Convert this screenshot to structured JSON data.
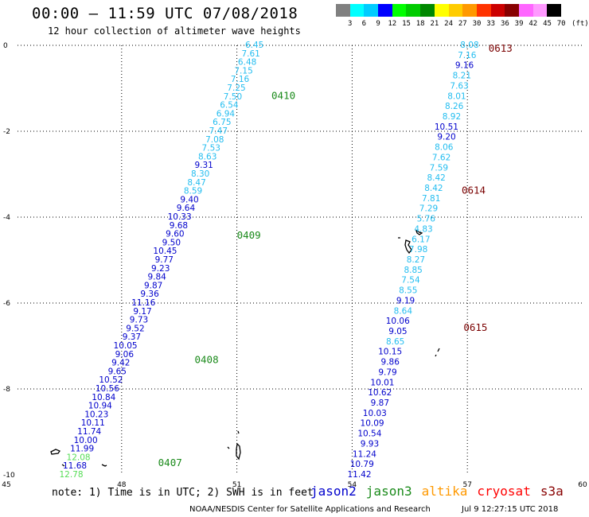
{
  "title": "00:00 – 11:59 UTC 07/08/2018",
  "subtitle": "12 hour collection of altimeter wave heights",
  "legend": {
    "unit": "(ft)",
    "colors": [
      "#808080",
      "#00ffff",
      "#00ccff",
      "#0000ff",
      "#00ff00",
      "#00cc00",
      "#008800",
      "#ffff00",
      "#ffcc00",
      "#ff9900",
      "#ff3300",
      "#cc0000",
      "#880000",
      "#ff66ff",
      "#ff99ff",
      "#000000"
    ],
    "labels": [
      "3",
      "6",
      "9",
      "12",
      "15",
      "18",
      "21",
      "24",
      "27",
      "30",
      "33",
      "36",
      "39",
      "42",
      "45",
      "70"
    ]
  },
  "axes": {
    "x_ticks": [
      "45",
      "48",
      "51",
      "54",
      "57",
      "60"
    ],
    "y_ticks": [
      "0",
      "-2",
      "-4",
      "-6",
      "-8",
      "-10"
    ],
    "x_range": [
      45,
      60
    ],
    "y_range": [
      0,
      -10
    ]
  },
  "colors": {
    "cyan": "#23bdf0",
    "blue": "#0000cc",
    "green": "#1a8a1a",
    "lightgreen": "#55dd55",
    "maroon": "#7a0000",
    "altika": "#ff9900",
    "cryosat": "#ff0000",
    "s3a": "#880000"
  },
  "tracks": [
    {
      "start": [
        51.7,
        0.0
      ],
      "end": [
        47.0,
        -10.0
      ],
      "points": [
        [
          "6.45",
          "cyan"
        ],
        [
          "7.61",
          "cyan"
        ],
        [
          "6.48",
          "cyan"
        ],
        [
          "7.15",
          "cyan"
        ],
        [
          "7.16",
          "cyan"
        ],
        [
          "7.25",
          "cyan"
        ],
        [
          "7.50",
          "cyan"
        ],
        [
          "6.54",
          "cyan"
        ],
        [
          "6.94",
          "cyan"
        ],
        [
          "6.75",
          "cyan"
        ],
        [
          "7.47",
          "cyan"
        ],
        [
          "7.08",
          "cyan"
        ],
        [
          "7.53",
          "cyan"
        ],
        [
          "8.63",
          "cyan"
        ],
        [
          "9.31",
          "blue"
        ],
        [
          "8.30",
          "cyan"
        ],
        [
          "8.47",
          "cyan"
        ],
        [
          "8.59",
          "cyan"
        ],
        [
          "9.40",
          "blue"
        ],
        [
          "9.64",
          "blue"
        ],
        [
          "10.33",
          "blue"
        ],
        [
          "9.68",
          "blue"
        ],
        [
          "9.60",
          "blue"
        ],
        [
          "9.50",
          "blue"
        ],
        [
          "10.45",
          "blue"
        ],
        [
          "9.77",
          "blue"
        ],
        [
          "9.23",
          "blue"
        ],
        [
          "9.84",
          "blue"
        ],
        [
          "9.87",
          "blue"
        ],
        [
          "9.36",
          "blue"
        ],
        [
          "11.16",
          "blue"
        ],
        [
          "9.17",
          "blue"
        ],
        [
          "9.73",
          "blue"
        ],
        [
          "9.52",
          "blue"
        ],
        [
          "9.37",
          "blue"
        ],
        [
          "10.05",
          "blue"
        ],
        [
          "9.06",
          "blue"
        ],
        [
          "9.42",
          "blue"
        ],
        [
          "9.65",
          "blue"
        ],
        [
          "10.52",
          "blue"
        ],
        [
          "10.56",
          "blue"
        ],
        [
          "10.84",
          "blue"
        ],
        [
          "10.94",
          "blue"
        ],
        [
          "10.23",
          "blue"
        ],
        [
          "10.11",
          "blue"
        ],
        [
          "11.74",
          "blue"
        ],
        [
          "10.00",
          "blue"
        ],
        [
          "11.99",
          "blue"
        ],
        [
          "12.08",
          "lightgreen"
        ],
        [
          "11.68",
          "blue"
        ],
        [
          "12.78",
          "lightgreen"
        ]
      ]
    },
    {
      "start": [
        57.3,
        0.0
      ],
      "end": [
        54.5,
        -10.0
      ],
      "points": [
        [
          "8.08",
          "cyan"
        ],
        [
          "7.16",
          "cyan"
        ],
        [
          "9.16",
          "blue"
        ],
        [
          "8.21",
          "cyan"
        ],
        [
          "7.63",
          "cyan"
        ],
        [
          "8.01",
          "cyan"
        ],
        [
          "8.26",
          "cyan"
        ],
        [
          "8.92",
          "cyan"
        ],
        [
          "10.51",
          "blue"
        ],
        [
          "9.20",
          "blue"
        ],
        [
          "8.06",
          "cyan"
        ],
        [
          "7.62",
          "cyan"
        ],
        [
          "7.59",
          "cyan"
        ],
        [
          "8.42",
          "cyan"
        ],
        [
          "8.42",
          "cyan"
        ],
        [
          "7.81",
          "cyan"
        ],
        [
          "7.29",
          "cyan"
        ],
        [
          "5.76",
          "cyan"
        ],
        [
          "4.83",
          "cyan"
        ],
        [
          "6.17",
          "cyan"
        ],
        [
          "7.98",
          "cyan"
        ],
        [
          "8.27",
          "cyan"
        ],
        [
          "8.85",
          "cyan"
        ],
        [
          "7.54",
          "cyan"
        ],
        [
          "8.55",
          "cyan"
        ],
        [
          "9.19",
          "blue"
        ],
        [
          "8.64",
          "cyan"
        ],
        [
          "10.06",
          "blue"
        ],
        [
          "9.05",
          "blue"
        ],
        [
          "8.65",
          "cyan"
        ],
        [
          "10.15",
          "blue"
        ],
        [
          "9.86",
          "blue"
        ],
        [
          "9.79",
          "blue"
        ],
        [
          "10.01",
          "blue"
        ],
        [
          "10.62",
          "blue"
        ],
        [
          "9.87",
          "blue"
        ],
        [
          "10.03",
          "blue"
        ],
        [
          "10.09",
          "blue"
        ],
        [
          "10.54",
          "blue"
        ],
        [
          "9.93",
          "blue"
        ],
        [
          "11.24",
          "blue"
        ],
        [
          "10.79",
          "blue"
        ],
        [
          "11.42",
          "blue"
        ]
      ]
    }
  ],
  "time_labels": [
    {
      "text": "0410",
      "lon": 51.9,
      "lat": -1.25,
      "color": "green"
    },
    {
      "text": "0409",
      "lon": 51.0,
      "lat": -4.5,
      "color": "green"
    },
    {
      "text": "0408",
      "lon": 49.9,
      "lat": -7.4,
      "color": "green"
    },
    {
      "text": "0407",
      "lon": 48.95,
      "lat": -9.8,
      "color": "green"
    },
    {
      "text": "0613",
      "lon": 57.55,
      "lat": -0.15,
      "color": "maroon"
    },
    {
      "text": "0614",
      "lon": 56.85,
      "lat": -3.45,
      "color": "maroon"
    },
    {
      "text": "0615",
      "lon": 56.9,
      "lat": -6.65,
      "color": "maroon"
    }
  ],
  "footer": {
    "note": "note: 1) Time is in UTC; 2) SWH is in feet",
    "satellites": [
      {
        "name": "jason2",
        "color": "blue"
      },
      {
        "name": "jason3",
        "color": "green"
      },
      {
        "name": "altika",
        "color": "altika"
      },
      {
        "name": "cryosat",
        "color": "cryosat"
      },
      {
        "name": "s3a",
        "color": "s3a"
      }
    ],
    "credit": "NOAA/NESDIS Center for Satellite Applications and Research",
    "generated": "Jul  9 12:27:15 UTC 2018"
  }
}
